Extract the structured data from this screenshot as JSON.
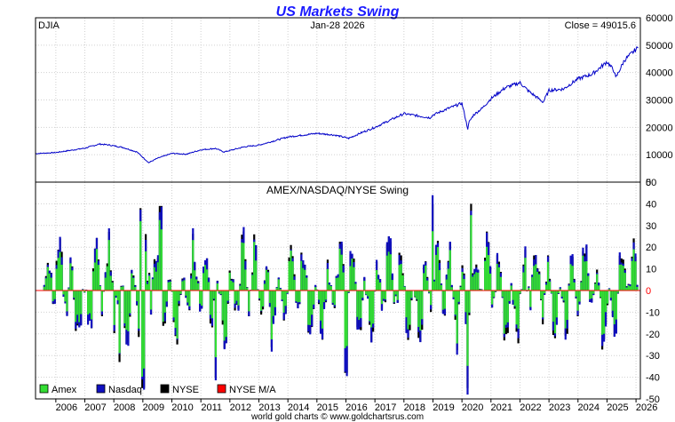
{
  "chart_data": [
    {
      "type": "line",
      "title": "US Markets Swing",
      "label_left": "DJIA",
      "label_center": "Jan-28  2026",
      "label_right": "Close = 49015.6",
      "ylim": [
        0,
        60000
      ],
      "yticks": [
        0,
        10000,
        20000,
        30000,
        40000,
        50000,
        60000
      ],
      "grid": true,
      "series": [
        {
          "name": "DJIA",
          "color": "#0000c8",
          "x": [
            2005.3,
            2006.0,
            2007.0,
            2007.5,
            2007.8,
            2008.3,
            2008.8,
            2009.2,
            2009.5,
            2010.0,
            2010.5,
            2011.0,
            2011.5,
            2011.8,
            2012.5,
            2013.0,
            2014.0,
            2015.0,
            2015.6,
            2016.1,
            2016.5,
            2017.0,
            2018.0,
            2018.9,
            2019.0,
            2019.5,
            2020.0,
            2020.2,
            2020.25,
            2020.4,
            2020.7,
            2021.0,
            2021.5,
            2022.0,
            2022.3,
            2022.8,
            2023.0,
            2023.5,
            2024.0,
            2024.5,
            2024.9,
            2025.0,
            2025.25,
            2025.3,
            2025.6,
            2026.0,
            2026.08
          ],
          "values": [
            10400,
            10800,
            12400,
            13900,
            13600,
            12700,
            11000,
            7100,
            8700,
            10500,
            10200,
            11800,
            12300,
            11000,
            12900,
            13500,
            16500,
            17800,
            17200,
            16000,
            17900,
            20000,
            25000,
            23500,
            24500,
            26800,
            28800,
            19500,
            22000,
            24500,
            27000,
            30500,
            34500,
            36300,
            33200,
            29200,
            33500,
            34000,
            37700,
            39500,
            43000,
            44000,
            40500,
            38000,
            44500,
            48500,
            49015.6
          ]
        }
      ]
    },
    {
      "type": "bar",
      "title": "AMEX/NASDAQ/NYSE Swing",
      "ylim": [
        -50,
        50
      ],
      "yticks": [
        -50,
        -40,
        -30,
        -20,
        -10,
        0,
        10,
        20,
        30,
        40,
        50
      ],
      "xlim": [
        2005.3,
        2026.15
      ],
      "xticks": [
        "2006",
        "2007",
        "2008",
        "2009",
        "2010",
        "2011",
        "2012",
        "2013",
        "2014",
        "2015",
        "2016",
        "2017",
        "2018",
        "2019",
        "2020",
        "2021",
        "2022",
        "2023",
        "2024",
        "2025",
        "2026"
      ],
      "grid": true,
      "zero_line": {
        "label": "0",
        "color": "#ff0000"
      },
      "legend": "bottom-left",
      "series": [
        {
          "name": "Amex",
          "color": "#33dd33"
        },
        {
          "name": "Nasdaq",
          "color": "#1010c0"
        },
        {
          "name": "NYSE",
          "color": "#000000"
        },
        {
          "name": "NYSE M/A",
          "color": "#ff0000"
        }
      ],
      "notable_values": {
        "x": [
          2008.9,
          2009.0,
          2009.6,
          2019.0,
          2020.3,
          2020.2,
          2016.0,
          2008.2,
          2011.5
        ],
        "y": [
          38,
          -45,
          39,
          40,
          40,
          -45,
          -38,
          -33,
          -40
        ]
      }
    }
  ],
  "footer": {
    "credit": "world gold charts © www.goldchartsrus.com"
  },
  "colors": {
    "background": "#ffffff",
    "grid": "#d0d0d0",
    "frame": "#000000"
  }
}
